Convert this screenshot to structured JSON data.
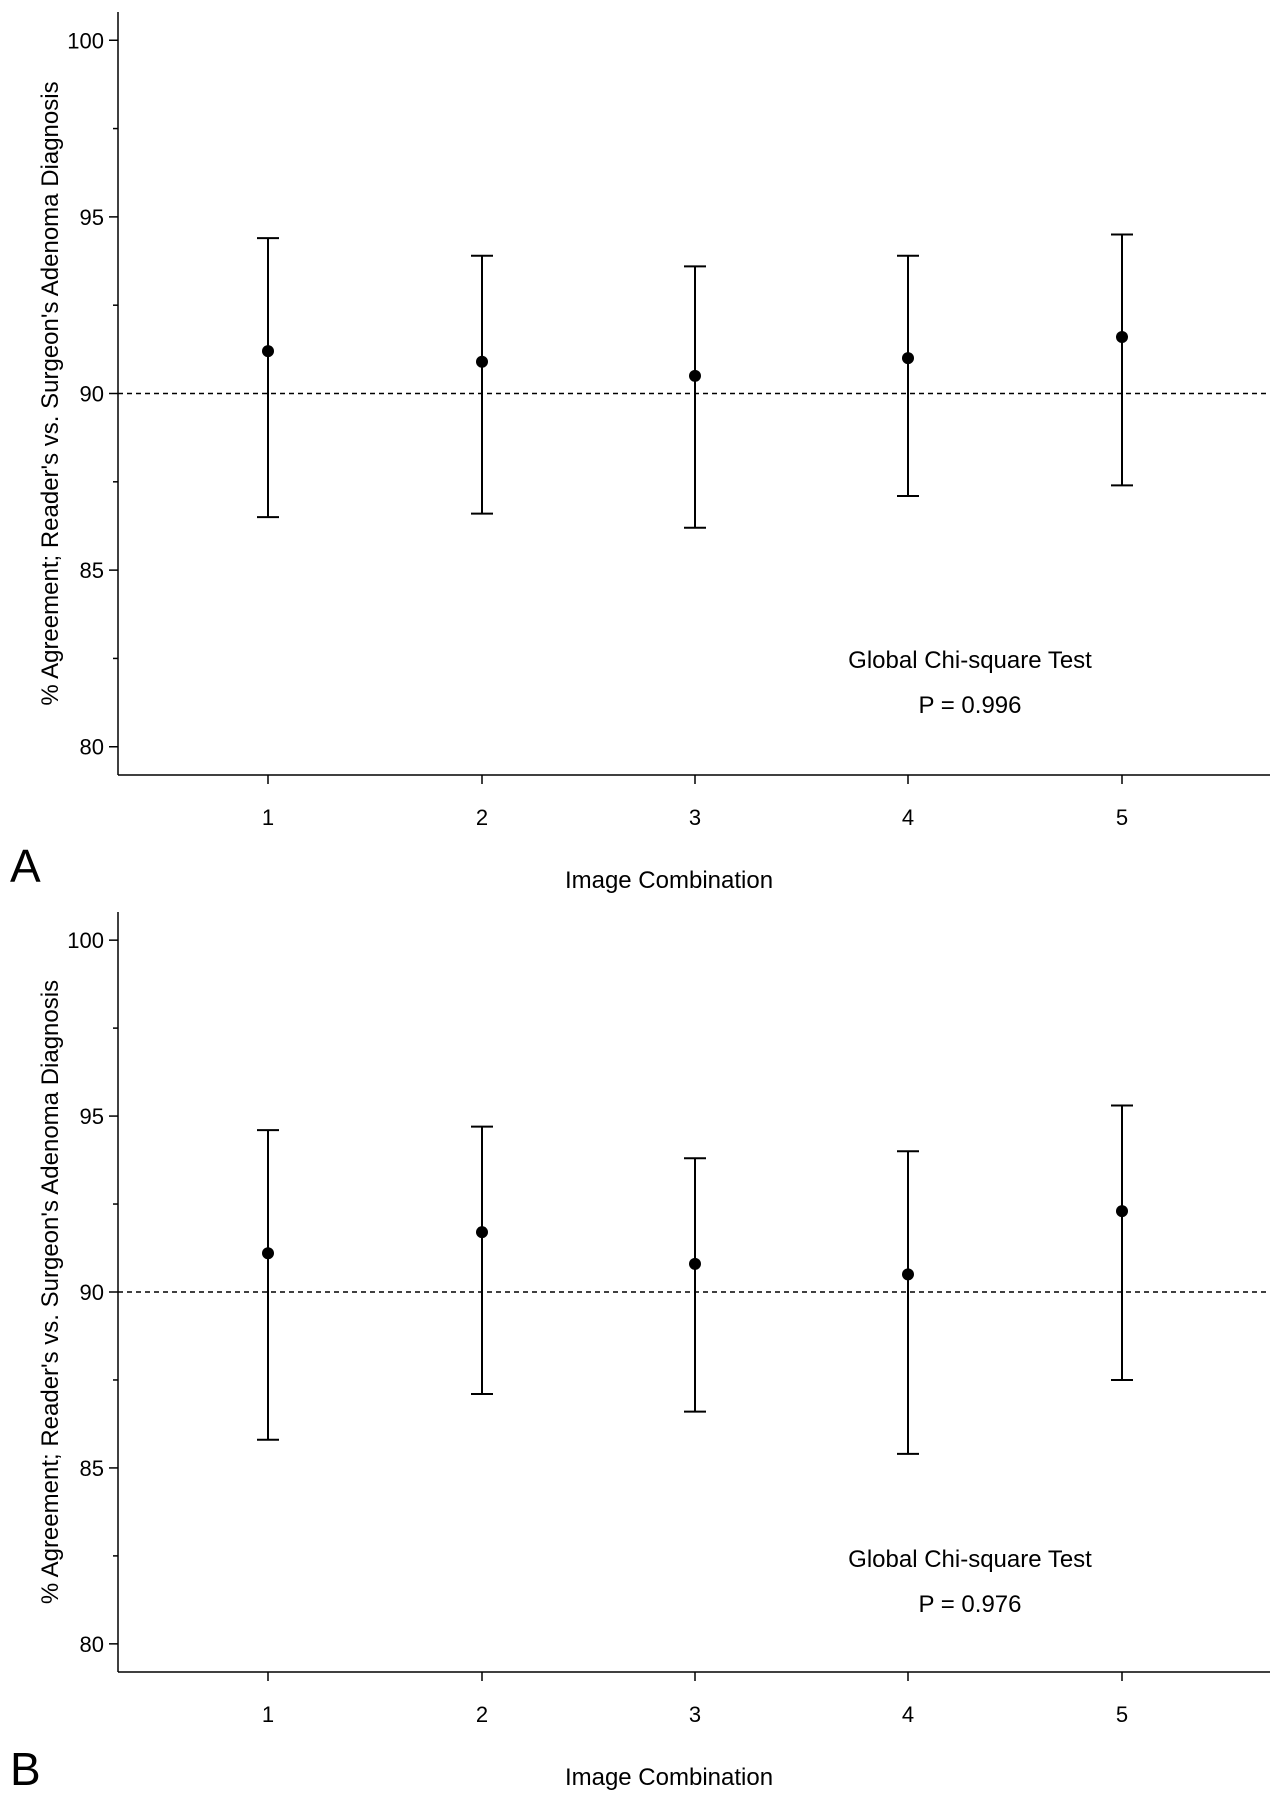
{
  "chart_data": [
    {
      "type": "scatter",
      "panel_label": "A",
      "xlabel": "Image Combination",
      "ylabel": "% Agreement; Reader's vs. Surgeon's Adenoma Diagnosis",
      "categories": [
        "1",
        "2",
        "3",
        "4",
        "5"
      ],
      "values": [
        91.2,
        90.9,
        90.5,
        91.0,
        91.6
      ],
      "ci_lower": [
        86.5,
        86.6,
        86.2,
        87.1,
        87.4
      ],
      "ci_upper": [
        94.4,
        93.9,
        93.6,
        93.9,
        94.5
      ],
      "reference_line": 90,
      "ylim": [
        79.2,
        100.8
      ],
      "yticks": [
        80,
        85,
        90,
        95,
        100
      ],
      "annotation": [
        "Global Chi-square Test",
        "P = 0.996"
      ],
      "grid": false
    },
    {
      "type": "scatter",
      "panel_label": "B",
      "xlabel": "Image Combination",
      "ylabel": "% Agreement; Reader's vs. Surgeon's Adenoma Diagnosis",
      "categories": [
        "1",
        "2",
        "3",
        "4",
        "5"
      ],
      "values": [
        91.1,
        91.7,
        90.8,
        90.5,
        92.3
      ],
      "ci_lower": [
        85.8,
        87.1,
        86.6,
        85.4,
        87.5
      ],
      "ci_upper": [
        94.6,
        94.7,
        93.8,
        94.0,
        95.3
      ],
      "reference_line": 90,
      "ylim": [
        79.2,
        100.8
      ],
      "yticks": [
        80,
        85,
        90,
        95,
        100
      ],
      "annotation": [
        "Global Chi-square Test",
        "P = 0.976"
      ],
      "grid": false
    }
  ]
}
